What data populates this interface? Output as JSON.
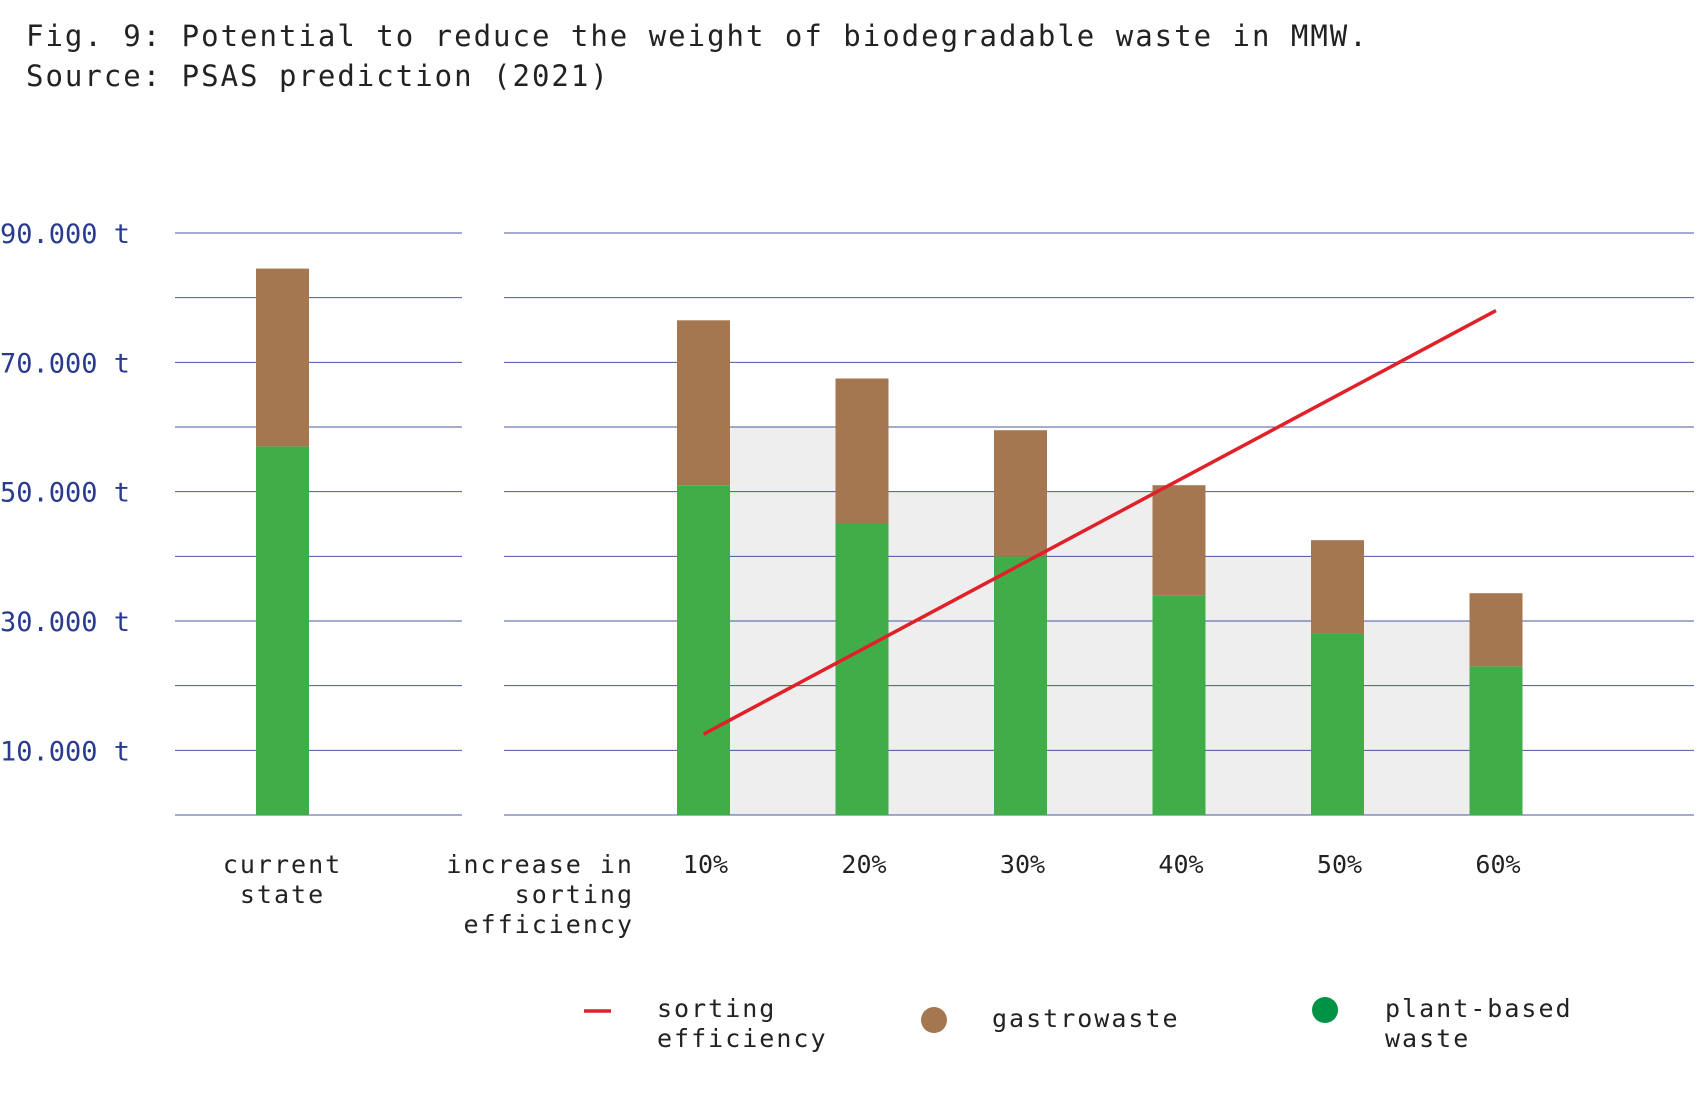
{
  "caption": {
    "line1": "Fig. 9: Potential to reduce the weight of biodegradable waste in MMW.",
    "line2": "Source: PSAS prediction (2021)"
  },
  "colors": {
    "plant": "#41ad49",
    "gastro": "#a57750",
    "line": "#e0212a",
    "grid": "#2a3b8f",
    "shade": "#eeeeee",
    "axis_text": "#2a3b8f",
    "legend_plant": "#009245"
  },
  "chart_data": {
    "type": "bar",
    "stacked": true,
    "y_tick_labels": [
      "90.000 t",
      "70.000 t",
      "50.000 t",
      "30.000 t",
      "10.000 t"
    ],
    "y_tick_values": [
      90000,
      70000,
      50000,
      30000,
      10000
    ],
    "ylim": [
      0,
      90000
    ],
    "grid": true,
    "current_state": {
      "label_lines": [
        "current",
        "state"
      ],
      "plant": 57000,
      "gastro": 27500
    },
    "axis_label_lines": [
      "increase in",
      "sorting",
      "efficiency"
    ],
    "categories": [
      "10%",
      "20%",
      "30%",
      "40%",
      "50%",
      "60%"
    ],
    "series": [
      {
        "name": "plant-based waste",
        "values": [
          51000,
          45000,
          40000,
          34000,
          28000,
          23000
        ]
      },
      {
        "name": "gastrowaste",
        "values": [
          25500,
          22500,
          19500,
          17000,
          14500,
          11300
        ]
      }
    ],
    "reduction_band": [
      60000,
      50000,
      50000,
      40000,
      30000,
      30000
    ],
    "sorting_efficiency_line": {
      "start": 12500,
      "end": 78000
    },
    "legend": {
      "items": [
        {
          "name": "sorting efficiency",
          "lines": [
            "sorting",
            "efficiency"
          ],
          "marker": "line"
        },
        {
          "name": "gastrowaste",
          "lines": [
            "gastrowaste"
          ],
          "marker": "dot"
        },
        {
          "name": "plant-based waste",
          "lines": [
            "plant-based",
            "waste"
          ],
          "marker": "dot"
        }
      ]
    }
  }
}
